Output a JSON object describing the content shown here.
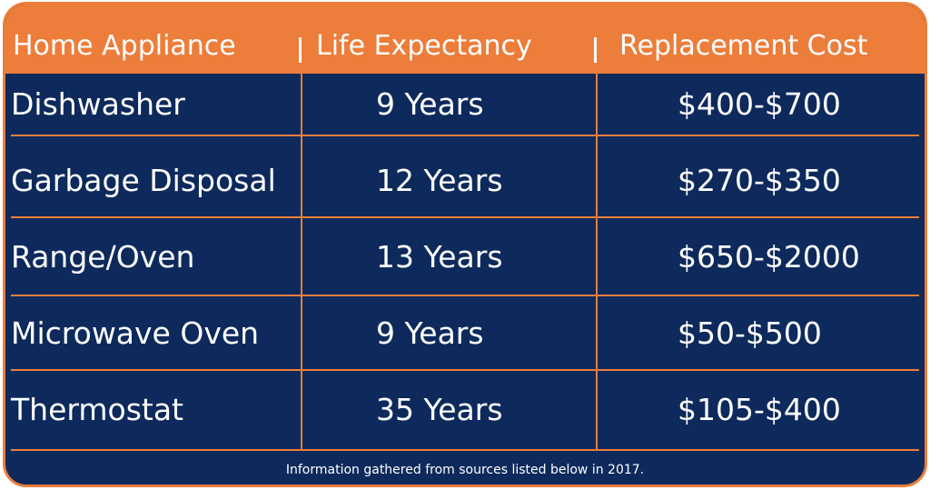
{
  "table": {
    "columns": [
      "Home Appliance",
      "Life Expectancy",
      "Replacement Cost"
    ],
    "rows": [
      [
        "Dishwasher",
        "9 Years",
        "$400-$700"
      ],
      [
        "Garbage Disposal",
        "12 Years",
        "$270-$350"
      ],
      [
        "Range/Oven",
        "13 Years",
        "$650-$2000"
      ],
      [
        "Microwave Oven",
        "9 Years",
        "$50-$500"
      ],
      [
        "Thermostat",
        "35 Years",
        "$105-$400"
      ]
    ]
  },
  "footer": {
    "note": "Information gathered from sources listed below in 2017."
  }
}
